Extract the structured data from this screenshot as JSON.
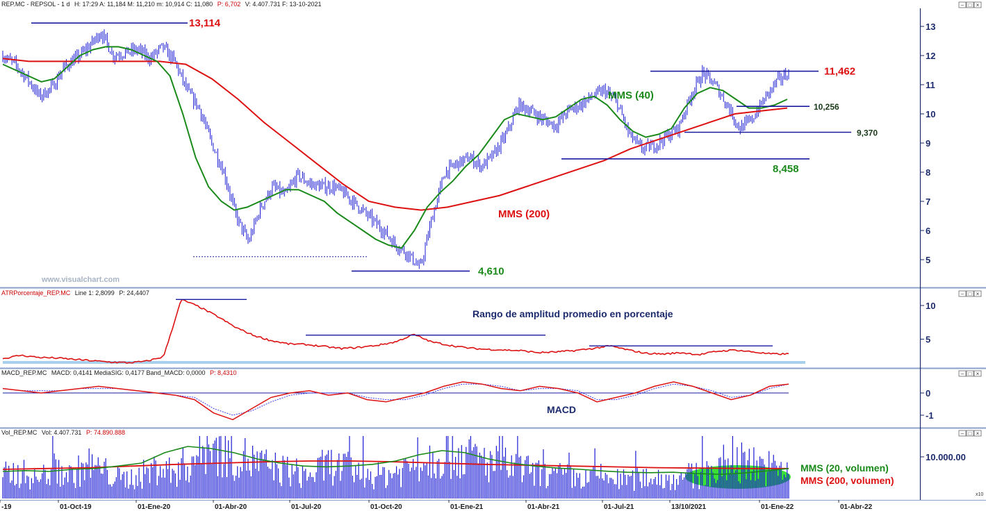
{
  "panels": {
    "price": {
      "header_label": "REP.MC - REPSOL - 1 d",
      "header_values": "H: 17:29 A: 11,184 M: 11,210 m: 10,914 C: 11,080",
      "header_p": "P: 6,702",
      "header_tail": "V: 4.407.731 F: 13-10-2021",
      "watermark": "www.visualchart.com"
    },
    "atr": {
      "header_label": "ATRPorcentaje_REP.MC",
      "header_values": "Line 1: 2,8099",
      "header_p": "P: 24,4407",
      "annotation": "Rango de amplitud promedio en porcentaje"
    },
    "macd": {
      "header_label": "MACD_REP.MC",
      "header_values": "MACD: 0,4141 MediaSIG: 0,4177 Band_MACD: 0,0000",
      "header_p": "P: 8,4310",
      "annotation": "MACD"
    },
    "vol": {
      "header_label": "Vol_REP.MC",
      "header_values": "Vol: 4.407.731",
      "header_p": "P: 74.890.888",
      "ma20_label": "MMS (20, volumen)",
      "ma200_label": "MMS (200, volumen)"
    }
  },
  "window_buttons": [
    "–",
    "□",
    "×"
  ],
  "x_axis": {
    "ticks": [
      "-19",
      "01-Oct-19",
      "01-Ene-20",
      "01-Abr-20",
      "01-Jul-20",
      "01-Oct-20",
      "01-Ene-21",
      "01-Abr-21",
      "01-Jul-21",
      "13/10/2021",
      "01-Ene-22",
      "01-Abr-22"
    ],
    "cursor_label": "13/10/2021"
  },
  "scale_label": "x10",
  "colors": {
    "price_bars": "#1a1ad4",
    "ma40": "#1a8a1a",
    "ma200": "#dd1111",
    "level_line": "#1a1aa0",
    "axis_text": "#1c2a6e",
    "volume_highlight": "#22dd22"
  },
  "chart_data": [
    {
      "type": "bar",
      "subtype": "ohlc",
      "series": [
        {
          "name": "REP.MC",
          "values": [
            12.0,
            11.7,
            11.2,
            10.6,
            10.9,
            11.6,
            11.9,
            12.3,
            12.8,
            12.0,
            12.1,
            12.2,
            11.9,
            12.3,
            11.8,
            10.8,
            10.2,
            9.0,
            8.0,
            6.5,
            5.6,
            6.8,
            7.5,
            7.2,
            7.9,
            7.6,
            7.5,
            7.5,
            7.2,
            6.8,
            6.4,
            6.0,
            5.5,
            5.2,
            4.7,
            6.5,
            8.0,
            8.3,
            8.5,
            8.2,
            8.6,
            9.3,
            10.3,
            10.1,
            9.8,
            9.6,
            10.1,
            10.3,
            10.6,
            10.8,
            10.4,
            9.3,
            8.8,
            8.9,
            9.2,
            9.5,
            10.6,
            11.4,
            11.0,
            10.3,
            9.5,
            9.8,
            10.5,
            11.1,
            11.4
          ]
        },
        {
          "name": "MMS (40)",
          "values": [
            11.7,
            11.5,
            11.3,
            11.1,
            11.2,
            11.6,
            12.0,
            12.2,
            12.3,
            12.3,
            12.2,
            12.0,
            11.8,
            11.3,
            10.0,
            8.5,
            7.5,
            7.0,
            6.7,
            6.8,
            7.0,
            7.2,
            7.4,
            7.4,
            7.2,
            7.0,
            6.6,
            6.3,
            6.0,
            5.7,
            5.5,
            5.4,
            6.0,
            6.8,
            7.3,
            7.7,
            8.2,
            8.6,
            9.2,
            9.8,
            10.0,
            9.9,
            9.8,
            9.9,
            10.2,
            10.5,
            10.6,
            10.3,
            9.8,
            9.4,
            9.2,
            9.3,
            9.5,
            10.2,
            10.7,
            10.9,
            10.8,
            10.5,
            10.2,
            10.2,
            10.3,
            10.5
          ]
        },
        {
          "name": "MMS (200)",
          "values": [
            11.9,
            11.8,
            11.8,
            11.8,
            11.8,
            11.8,
            11.8,
            11.7,
            11.2,
            10.5,
            9.7,
            9.0,
            8.3,
            7.6,
            7.0,
            6.8,
            6.7,
            6.8,
            7.0,
            7.2,
            7.5,
            7.8,
            8.1,
            8.4,
            8.8,
            9.1,
            9.4,
            9.7,
            10.0,
            10.1,
            10.2
          ]
        }
      ],
      "levels": [
        {
          "value": 13.114,
          "label": "13,114"
        },
        {
          "value": 11.462,
          "label": "11,462"
        },
        {
          "value": 10.256,
          "label": "10,256"
        },
        {
          "value": 9.37,
          "label": "9,370"
        },
        {
          "value": 8.458,
          "label": "8,458"
        },
        {
          "value": 4.61,
          "label": "4,610"
        }
      ],
      "annotations": [
        "MMS (40)",
        "MMS (200)"
      ],
      "xlabel": "",
      "ylabel": "",
      "ylim": [
        4,
        13.6
      ],
      "yticks": [
        5,
        6,
        7,
        8,
        9,
        10,
        11,
        12,
        13
      ],
      "grid": false
    },
    {
      "type": "line",
      "series": [
        {
          "name": "Line 1",
          "values": [
            2.1,
            2.6,
            2.3,
            2.2,
            2.0,
            1.8,
            1.6,
            1.5,
            1.7,
            2.4,
            10.9,
            9.8,
            8.4,
            6.8,
            5.6,
            4.8,
            4.3,
            4.2,
            3.9,
            3.6,
            3.8,
            4.1,
            4.6,
            5.7,
            4.6,
            4.1,
            3.7,
            3.5,
            3.4,
            3.3,
            3.0,
            3.1,
            3.3,
            3.6,
            4.0,
            3.4,
            2.9,
            2.8,
            3.0,
            2.7,
            3.2,
            3.4,
            3.1,
            2.8,
            2.8
          ]
        }
      ],
      "levels": [
        10.9,
        5.6,
        4.0
      ],
      "xlabel": "",
      "ylabel": "",
      "ylim": [
        0.5,
        11.5
      ],
      "yticks": [
        5,
        10
      ],
      "grid": false
    },
    {
      "type": "line",
      "series": [
        {
          "name": "MACD",
          "values": [
            0.2,
            0.1,
            0.0,
            0.1,
            0.2,
            0.3,
            0.2,
            0.1,
            0.0,
            -0.1,
            -0.3,
            -0.9,
            -1.2,
            -0.7,
            -0.2,
            0.0,
            0.1,
            -0.1,
            0.0,
            -0.3,
            -0.4,
            -0.2,
            0.0,
            0.3,
            0.5,
            0.4,
            0.2,
            0.1,
            0.3,
            0.2,
            0.0,
            -0.4,
            -0.2,
            0.0,
            0.3,
            0.5,
            0.3,
            0.0,
            -0.3,
            -0.1,
            0.3,
            0.4
          ]
        },
        {
          "name": "MediaSIG",
          "values": [
            0.2,
            0.1,
            0.1,
            0.1,
            0.2,
            0.2,
            0.2,
            0.1,
            0.0,
            -0.1,
            -0.2,
            -0.7,
            -1.0,
            -0.8,
            -0.4,
            -0.1,
            0.0,
            0.0,
            0.0,
            -0.2,
            -0.3,
            -0.3,
            -0.1,
            0.2,
            0.4,
            0.4,
            0.3,
            0.1,
            0.2,
            0.2,
            0.1,
            -0.3,
            -0.3,
            -0.1,
            0.2,
            0.4,
            0.3,
            0.1,
            -0.2,
            -0.1,
            0.2,
            0.4
          ]
        }
      ],
      "xlabel": "",
      "ylabel": "",
      "ylim": [
        -1.5,
        0.8
      ],
      "yticks": [
        -1,
        0
      ],
      "grid": false
    },
    {
      "type": "bar",
      "series": [
        {
          "name": "Vol",
          "values": [
            6,
            7,
            5,
            8,
            6,
            9,
            7,
            5,
            6,
            8,
            7,
            10,
            14,
            13,
            11,
            9,
            8,
            7,
            6,
            9,
            8,
            7,
            6,
            7,
            9,
            11,
            13,
            12,
            10,
            9,
            8,
            7,
            6,
            6,
            5,
            6,
            5,
            5,
            6,
            5,
            6,
            6,
            7,
            10,
            9,
            8,
            6
          ]
        },
        {
          "name": "MMS (20, volumen)",
          "values": [
            6.5,
            6.7,
            6.5,
            7.0,
            7.2,
            7.8,
            8.5,
            11.0,
            12.5,
            12.0,
            11.0,
            9.5,
            8.5,
            7.8,
            7.6,
            7.8,
            8.2,
            9.0,
            10.5,
            11.5,
            11.0,
            9.5,
            8.5,
            7.8,
            7.3,
            7.0,
            6.6,
            6.3,
            6.2,
            6.3,
            6.0,
            5.8,
            6.1,
            6.6,
            7.2
          ]
        },
        {
          "name": "MMS (200, volumen)",
          "values": [
            7.0,
            7.2,
            7.4,
            7.8,
            8.2,
            8.5,
            8.8,
            9.0,
            9.0,
            8.8,
            8.5,
            8.2,
            8.0,
            7.8,
            7.6,
            7.4,
            7.3,
            7.2,
            7.2
          ]
        }
      ],
      "xlabel": "",
      "ylabel": "",
      "ylim": [
        0,
        15
      ],
      "yticks": [
        10
      ],
      "ytick_labels": [
        "10.000.00"
      ],
      "grid": false
    }
  ]
}
